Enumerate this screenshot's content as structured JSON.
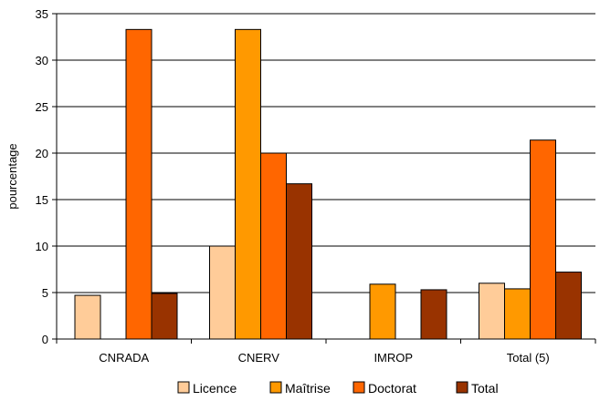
{
  "chart_data": {
    "type": "bar",
    "title": "",
    "xlabel": "",
    "ylabel": "pourcentage",
    "ylim": [
      0,
      35
    ],
    "yticks": [
      0,
      5,
      10,
      15,
      20,
      25,
      30,
      35
    ],
    "grid": true,
    "legend_position": "bottom",
    "categories": [
      "CNRADA",
      "CNERV",
      "IMROP",
      "Total (5)"
    ],
    "series": [
      {
        "name": "Licence",
        "color": "#FFCC99",
        "values": [
          4.7,
          10.0,
          0.0,
          6.0
        ]
      },
      {
        "name": "Maîtrise",
        "color": "#FF9900",
        "values": [
          0.0,
          33.3,
          5.9,
          5.4
        ]
      },
      {
        "name": "Doctorat",
        "color": "#FF6600",
        "values": [
          33.3,
          20.0,
          0.0,
          21.4
        ]
      },
      {
        "name": "Total",
        "color": "#993300",
        "values": [
          4.9,
          16.7,
          5.3,
          7.2
        ]
      }
    ]
  }
}
